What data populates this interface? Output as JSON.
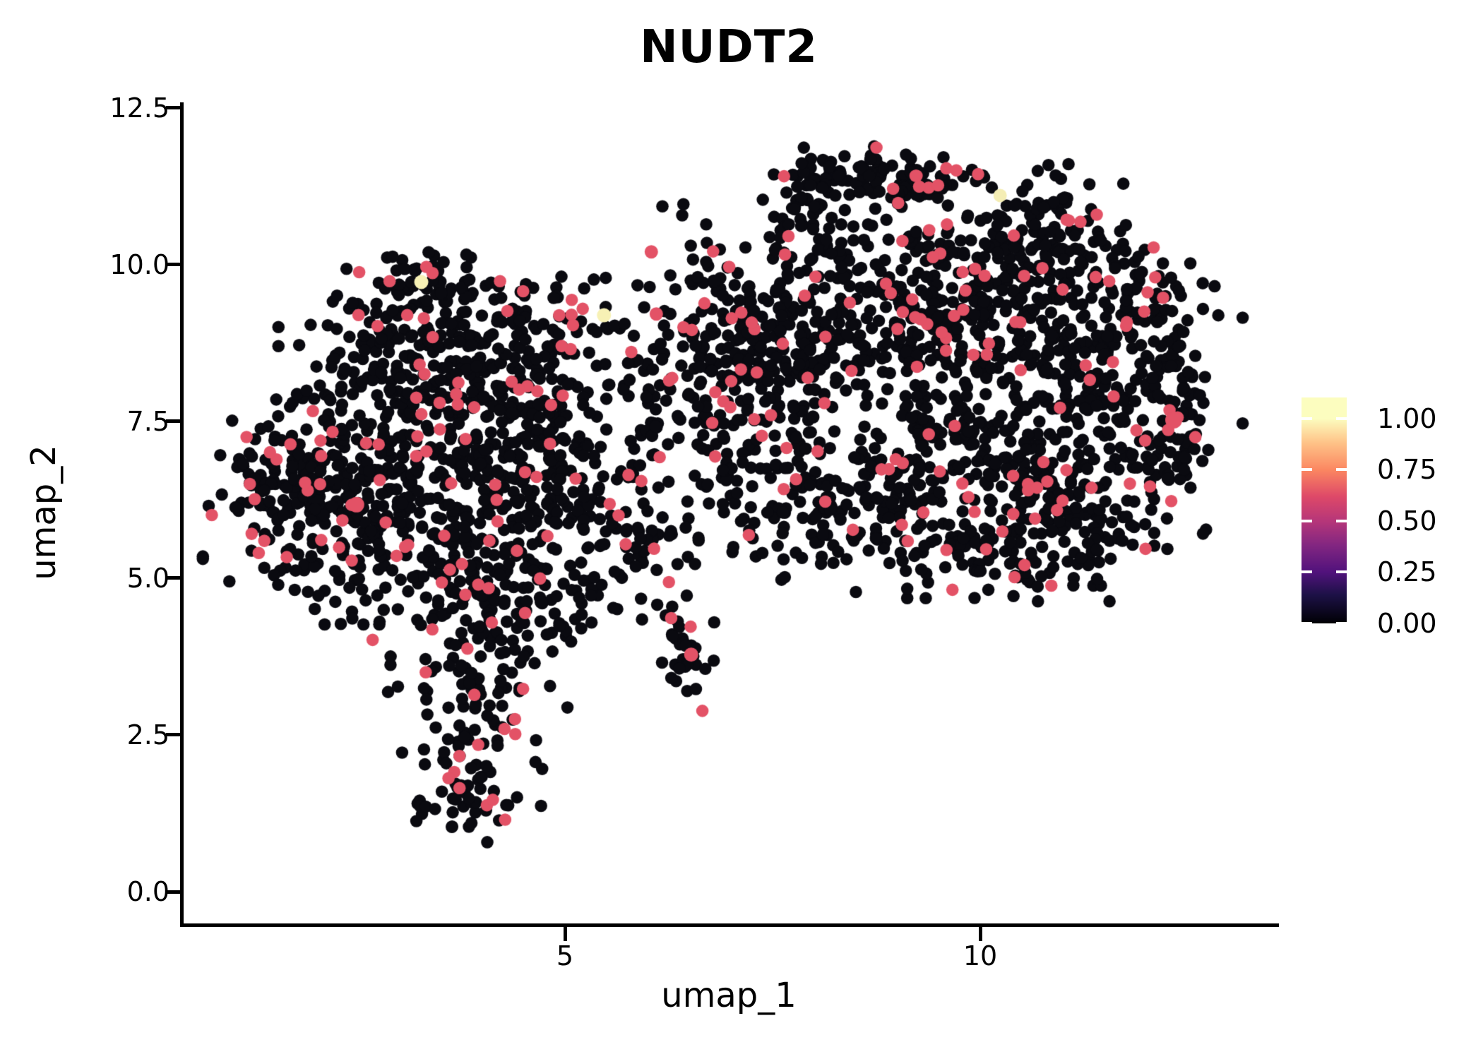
{
  "chart_data": {
    "type": "scatter",
    "title": "NUDT2",
    "xlabel": "umap_1",
    "ylabel": "umap_2",
    "x_ticks": [
      {
        "value": 5,
        "label": "5"
      },
      {
        "value": 10,
        "label": "10"
      }
    ],
    "y_ticks": [
      {
        "value": 0.0,
        "label": "0.0"
      },
      {
        "value": 2.5,
        "label": "2.5"
      },
      {
        "value": 5.0,
        "label": "5.0"
      },
      {
        "value": 7.5,
        "label": "7.5"
      },
      {
        "value": 10.0,
        "label": "10.0"
      },
      {
        "value": 12.5,
        "label": "12.5"
      }
    ],
    "xlim": [
      0.39,
      13.55
    ],
    "ylim": [
      -0.81,
      12.65
    ],
    "grid": false,
    "legend_position": "right",
    "point_radius_px": 8.8,
    "colors": {
      "base_point": "#0a0a10",
      "pink_point": "#e35266",
      "yellow_point": "#f7f1b5",
      "axis": "#000000",
      "background": "#ffffff"
    },
    "pink_fraction": 0.075,
    "seed": 1337,
    "clusters": [
      {
        "cx": 1.55,
        "cy": 6.6,
        "sx": 0.35,
        "sy": 0.5,
        "n": 60
      },
      {
        "cx": 2.2,
        "cy": 6.3,
        "sx": 0.65,
        "sy": 0.85,
        "n": 220
      },
      {
        "cx": 3.3,
        "cy": 6.15,
        "sx": 0.8,
        "sy": 1.0,
        "n": 240
      },
      {
        "cx": 3.35,
        "cy": 8.55,
        "sx": 0.75,
        "sy": 0.65,
        "n": 200
      },
      {
        "cx": 3.45,
        "cy": 9.6,
        "sx": 0.45,
        "sy": 0.4,
        "n": 65
      },
      {
        "cx": 4.35,
        "cy": 7.8,
        "sx": 0.65,
        "sy": 0.8,
        "n": 170
      },
      {
        "cx": 4.6,
        "cy": 5.6,
        "sx": 0.55,
        "sy": 0.9,
        "n": 140
      },
      {
        "cx": 4.0,
        "cy": 4.35,
        "sx": 0.55,
        "sy": 0.6,
        "n": 90
      },
      {
        "cx": 3.95,
        "cy": 2.95,
        "sx": 0.45,
        "sy": 0.5,
        "n": 60
      },
      {
        "cx": 3.8,
        "cy": 1.6,
        "sx": 0.38,
        "sy": 0.35,
        "n": 55
      },
      {
        "cx": 5.35,
        "cy": 6.6,
        "sx": 0.45,
        "sy": 1.1,
        "n": 70
      },
      {
        "cx": 5.1,
        "cy": 9.0,
        "sx": 0.4,
        "sy": 0.5,
        "n": 30
      },
      {
        "cx": 6.6,
        "cy": 8.8,
        "sx": 0.55,
        "sy": 0.9,
        "n": 90
      },
      {
        "cx": 7.2,
        "cy": 7.3,
        "sx": 0.6,
        "sy": 1.0,
        "n": 120
      },
      {
        "cx": 5.9,
        "cy": 5.5,
        "sx": 0.5,
        "sy": 0.8,
        "n": 50
      },
      {
        "cx": 8.5,
        "cy": 11.45,
        "sx": 0.45,
        "sy": 0.18,
        "n": 70
      },
      {
        "cx": 9.3,
        "cy": 11.3,
        "sx": 0.35,
        "sy": 0.25,
        "n": 50
      },
      {
        "cx": 7.95,
        "cy": 10.9,
        "sx": 0.28,
        "sy": 0.4,
        "n": 40
      },
      {
        "cx": 9.3,
        "cy": 9.7,
        "sx": 0.85,
        "sy": 0.75,
        "n": 200
      },
      {
        "cx": 10.8,
        "cy": 10.4,
        "sx": 0.5,
        "sy": 0.5,
        "n": 110
      },
      {
        "cx": 8.2,
        "cy": 8.6,
        "sx": 0.8,
        "sy": 0.85,
        "n": 190
      },
      {
        "cx": 10.4,
        "cy": 8.9,
        "sx": 0.75,
        "sy": 0.85,
        "n": 190
      },
      {
        "cx": 11.6,
        "cy": 8.0,
        "sx": 0.65,
        "sy": 0.85,
        "n": 170
      },
      {
        "cx": 12.1,
        "cy": 9.5,
        "sx": 0.35,
        "sy": 0.4,
        "n": 50
      },
      {
        "cx": 9.7,
        "cy": 7.0,
        "sx": 0.9,
        "sy": 0.65,
        "n": 170
      },
      {
        "cx": 11.0,
        "cy": 6.2,
        "sx": 0.75,
        "sy": 0.55,
        "n": 150
      },
      {
        "cx": 8.3,
        "cy": 6.0,
        "sx": 0.65,
        "sy": 0.55,
        "n": 130
      },
      {
        "cx": 12.35,
        "cy": 7.3,
        "sx": 0.25,
        "sy": 0.45,
        "n": 50
      },
      {
        "cx": 7.35,
        "cy": 8.9,
        "sx": 0.45,
        "sy": 0.95,
        "n": 90
      },
      {
        "cx": 10.2,
        "cy": 5.35,
        "sx": 0.7,
        "sy": 0.3,
        "n": 80
      },
      {
        "cx": 6.45,
        "cy": 3.8,
        "sx": 0.16,
        "sy": 0.42,
        "n": 30
      }
    ],
    "highlight_points": [
      {
        "x": 3.27,
        "y": 9.72,
        "color": "#f7f1b5",
        "r": 10
      },
      {
        "x": 5.47,
        "y": 9.19,
        "color": "#f7f1b5",
        "r": 10
      },
      {
        "x": 10.24,
        "y": 11.1,
        "color": "#f4edb4",
        "r": 9.5
      },
      {
        "x": 6.04,
        "y": 10.2,
        "color": "#e35266",
        "r": 9.5
      },
      {
        "x": 6.1,
        "y": 9.21,
        "color": "#e35266",
        "r": 9.5
      },
      {
        "x": 6.52,
        "y": 3.78,
        "color": "#e35266",
        "r": 10
      },
      {
        "x": 12.33,
        "y": 7.52,
        "color": "#e35266",
        "r": 12
      },
      {
        "x": 2.49,
        "y": 6.17,
        "color": "#e35266",
        "r": 11
      }
    ],
    "colorbar": {
      "ticks": [
        {
          "value": 1.0,
          "label": "1.00"
        },
        {
          "value": 0.75,
          "label": "0.75"
        },
        {
          "value": 0.5,
          "label": "0.50"
        },
        {
          "value": 0.25,
          "label": "0.25"
        },
        {
          "value": 0.0,
          "label": "0.00"
        }
      ],
      "vmax": 1.103,
      "gradient_stops": [
        {
          "value": 0.0,
          "color": "#000004"
        },
        {
          "value": 0.14,
          "color": "#1d1147"
        },
        {
          "value": 0.25,
          "color": "#51127c"
        },
        {
          "value": 0.38,
          "color": "#822681"
        },
        {
          "value": 0.5,
          "color": "#b63679"
        },
        {
          "value": 0.62,
          "color": "#de4968"
        },
        {
          "value": 0.75,
          "color": "#fb8761"
        },
        {
          "value": 0.88,
          "color": "#fec287"
        },
        {
          "value": 1.0,
          "color": "#fcfdbf"
        },
        {
          "value": 1.103,
          "color": "#fcfdbf"
        }
      ]
    }
  }
}
